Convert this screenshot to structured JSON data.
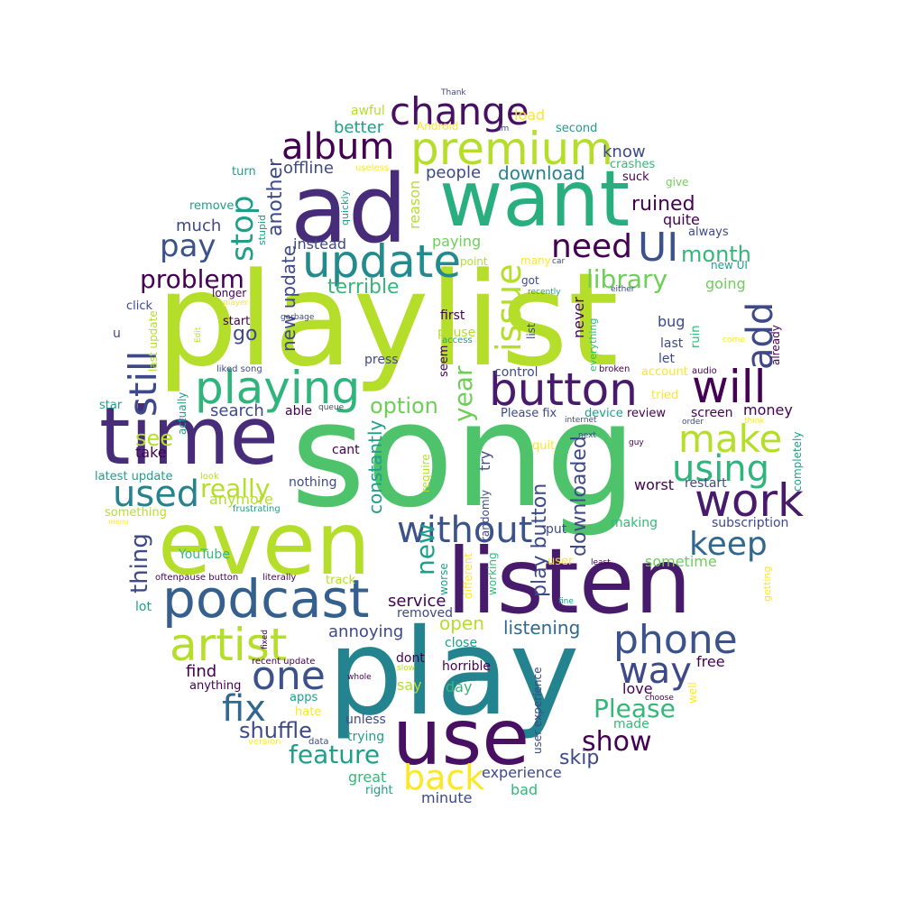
{
  "palette": [
    "#440154",
    "#482878",
    "#3e4989",
    "#31688e",
    "#26828e",
    "#1f9e89",
    "#35b779",
    "#6ece58",
    "#b5de2b",
    "#fde725"
  ],
  "words": [
    {
      "text": "song",
      "color": "#4ec36b"
    },
    {
      "text": "playlist",
      "color": "#b5de2b"
    },
    {
      "text": "play",
      "color": "#23838e"
    },
    {
      "text": "listen",
      "color": "#481a6c"
    },
    {
      "text": "even",
      "color": "#b5de2b"
    },
    {
      "text": "ad",
      "color": "#472c7a"
    },
    {
      "text": "want",
      "color": "#29af7f"
    },
    {
      "text": "time",
      "color": "#472c7a"
    },
    {
      "text": "use",
      "color": "#471063"
    },
    {
      "text": "podcast",
      "color": "#355f8d"
    },
    {
      "text": "premium",
      "color": "#b5de2b"
    },
    {
      "text": "update",
      "color": "#238a8d"
    },
    {
      "text": "button",
      "color": "#481a6c"
    },
    {
      "text": "will",
      "color": "#440154"
    },
    {
      "text": "work",
      "color": "#481a6c"
    },
    {
      "text": "playing",
      "color": "#2fb47c"
    },
    {
      "text": "artist",
      "color": "#b5de2b"
    },
    {
      "text": "phone",
      "color": "#3b528b"
    },
    {
      "text": "change",
      "color": "#471063"
    },
    {
      "text": "album",
      "color": "#440154"
    },
    {
      "text": "make",
      "color": "#b5de2b"
    },
    {
      "text": "one",
      "color": "#3b528b"
    },
    {
      "text": "way",
      "color": "#3e4989"
    },
    {
      "text": "UI",
      "color": "#3b528b"
    },
    {
      "text": "using",
      "color": "#2fb47c"
    },
    {
      "text": "without",
      "color": "#3b528b"
    },
    {
      "text": "keep",
      "color": "#31688e"
    },
    {
      "text": "used",
      "color": "#26828e"
    },
    {
      "text": "fix",
      "color": "#31688e"
    },
    {
      "text": "back",
      "color": "#fde725"
    },
    {
      "text": "need",
      "color": "#440154"
    },
    {
      "text": "pay",
      "color": "#3b528b"
    },
    {
      "text": "add",
      "color": "#3e4989"
    },
    {
      "text": "still",
      "color": "#3e4989"
    },
    {
      "text": "stop",
      "color": "#1f9e89"
    },
    {
      "text": "issue",
      "color": "#b5de2b"
    },
    {
      "text": "Please",
      "color": "#35b779"
    },
    {
      "text": "feature",
      "color": "#1f9e89"
    },
    {
      "text": "problem",
      "color": "#440154"
    },
    {
      "text": "library",
      "color": "#6ece58"
    },
    {
      "text": "show",
      "color": "#440154"
    },
    {
      "text": "really",
      "color": "#b5de2b"
    },
    {
      "text": "month",
      "color": "#35b779"
    },
    {
      "text": "new",
      "color": "#1f9e89"
    },
    {
      "text": "shuffle",
      "color": "#3e4989"
    },
    {
      "text": "option",
      "color": "#6ece58"
    },
    {
      "text": "year",
      "color": "#6ece58"
    },
    {
      "text": "thing",
      "color": "#3e4989"
    },
    {
      "text": "see",
      "color": "#b5de2b"
    },
    {
      "text": "terrible",
      "color": "#35b779"
    },
    {
      "text": "ruined",
      "color": "#440154"
    },
    {
      "text": "another",
      "color": "#3e4989"
    },
    {
      "text": "new update",
      "color": "#3e4989"
    },
    {
      "text": "downloaded",
      "color": "#3e4989"
    },
    {
      "text": "play button",
      "color": "#3e4989"
    },
    {
      "text": "listening",
      "color": "#31688e"
    },
    {
      "text": "constantly",
      "color": "#1f9e89"
    },
    {
      "text": "skip",
      "color": "#3e4989"
    },
    {
      "text": "download",
      "color": "#26828e"
    },
    {
      "text": "offline",
      "color": "#3e4989"
    },
    {
      "text": "people",
      "color": "#3e4989"
    },
    {
      "text": "better",
      "color": "#1f9e89"
    },
    {
      "text": "know",
      "color": "#3e4989"
    },
    {
      "text": "quite",
      "color": "#440154"
    },
    {
      "text": "go",
      "color": "#3e4989"
    },
    {
      "text": "much",
      "color": "#3e4989"
    },
    {
      "text": "open",
      "color": "#b5de2b"
    },
    {
      "text": "experience",
      "color": "#3e4989"
    },
    {
      "text": "search",
      "color": "#3e4989"
    },
    {
      "text": "service",
      "color": "#440154"
    },
    {
      "text": "annoying",
      "color": "#3e4989"
    },
    {
      "text": "find",
      "color": "#440154"
    },
    {
      "text": "free",
      "color": "#440154"
    },
    {
      "text": "money",
      "color": "#440154"
    },
    {
      "text": "instead",
      "color": "#3e4989"
    },
    {
      "text": "paying",
      "color": "#6ece58"
    },
    {
      "text": "reason",
      "color": "#b5de2b"
    },
    {
      "text": "load",
      "color": "#fde725"
    },
    {
      "text": "awful",
      "color": "#b5de2b"
    },
    {
      "text": "going",
      "color": "#6ece58"
    },
    {
      "text": "sometime",
      "color": "#6ece58"
    },
    {
      "text": "bug",
      "color": "#3e4989"
    },
    {
      "text": "worst",
      "color": "#440154"
    },
    {
      "text": "take",
      "color": "#440154"
    },
    {
      "text": "made",
      "color": "#35b779"
    },
    {
      "text": "love",
      "color": "#440154"
    },
    {
      "text": "say",
      "color": "#b5de2b"
    },
    {
      "text": "day",
      "color": "#35b779"
    },
    {
      "text": "great",
      "color": "#35b779"
    },
    {
      "text": "minute",
      "color": "#3e4989"
    },
    {
      "text": "bad",
      "color": "#35b779"
    },
    {
      "text": "trying",
      "color": "#1f9e89"
    },
    {
      "text": "unless",
      "color": "#3e4989"
    },
    {
      "text": "never",
      "color": "#440154"
    },
    {
      "text": "let",
      "color": "#3e4989"
    },
    {
      "text": "last",
      "color": "#3e4989"
    },
    {
      "text": "screen",
      "color": "#440154"
    },
    {
      "text": "restart",
      "color": "#3e4989"
    },
    {
      "text": "subscription",
      "color": "#3e4989"
    },
    {
      "text": "making",
      "color": "#35b779"
    },
    {
      "text": "try",
      "color": "#3e4989"
    },
    {
      "text": "dont",
      "color": "#440154"
    },
    {
      "text": "horrible",
      "color": "#440154"
    },
    {
      "text": "close",
      "color": "#1f9e89"
    },
    {
      "text": "removed",
      "color": "#3e4989"
    },
    {
      "text": "anymore",
      "color": "#b5de2b"
    },
    {
      "text": "nothing",
      "color": "#3e4989"
    },
    {
      "text": "cant",
      "color": "#440154"
    },
    {
      "text": "able",
      "color": "#440154"
    },
    {
      "text": "press",
      "color": "#3e4989"
    },
    {
      "text": "seem",
      "color": "#440154"
    },
    {
      "text": "first",
      "color": "#440154"
    },
    {
      "text": "pause",
      "color": "#b5de2b"
    },
    {
      "text": "control",
      "color": "#3e4989"
    },
    {
      "text": "Please fix",
      "color": "#3e4989"
    },
    {
      "text": "device",
      "color": "#1f9e89"
    },
    {
      "text": "review",
      "color": "#440154"
    },
    {
      "text": "quit",
      "color": "#fde725"
    },
    {
      "text": "put",
      "color": "#3e4989"
    },
    {
      "text": "user",
      "color": "#fde725"
    },
    {
      "text": "worse",
      "color": "#1f9e89"
    },
    {
      "text": "different",
      "color": "#fde725"
    },
    {
      "text": "working",
      "color": "#35b779"
    },
    {
      "text": "randomly",
      "color": "#3e4989"
    },
    {
      "text": "require",
      "color": "#b5de2b"
    },
    {
      "text": "lot",
      "color": "#1f9e89"
    },
    {
      "text": "YouTube",
      "color": "#35b779"
    },
    {
      "text": "oftenpause button",
      "color": "#440154"
    },
    {
      "text": "literally",
      "color": "#440154"
    },
    {
      "text": "track",
      "color": "#b5de2b"
    },
    {
      "text": "something",
      "color": "#b5de2b"
    },
    {
      "text": "latest update",
      "color": "#1f9e89"
    },
    {
      "text": "frustrating",
      "color": "#1f9e89"
    },
    {
      "text": "look",
      "color": "#b5de2b"
    },
    {
      "text": "star",
      "color": "#1f9e89"
    },
    {
      "text": "actually",
      "color": "#1f9e89"
    },
    {
      "text": "queue",
      "color": "#3e4989"
    },
    {
      "text": "liked song",
      "color": "#3e4989"
    },
    {
      "text": "last update",
      "color": "#b5de2b"
    },
    {
      "text": "Edit",
      "color": "#b5de2b"
    },
    {
      "text": "start",
      "color": "#440154"
    },
    {
      "text": "garbage",
      "color": "#3e4989"
    },
    {
      "text": "player",
      "color": "#fde725"
    },
    {
      "text": "longer",
      "color": "#440154"
    },
    {
      "text": "click",
      "color": "#3e4989"
    },
    {
      "text": "u",
      "color": "#3e4989"
    },
    {
      "text": "remove",
      "color": "#1f9e89"
    },
    {
      "text": "turn",
      "color": "#1f9e89"
    },
    {
      "text": "stupid",
      "color": "#1f9e89"
    },
    {
      "text": "quickly",
      "color": "#1f9e89"
    },
    {
      "text": "useless",
      "color": "#fde725"
    },
    {
      "text": "second",
      "color": "#1f9e89"
    },
    {
      "text": "im",
      "color": "#3e4989"
    },
    {
      "text": "Android",
      "color": "#fde725"
    },
    {
      "text": "Thank",
      "color": "#3e4989"
    },
    {
      "text": "crashes",
      "color": "#35b779"
    },
    {
      "text": "suck",
      "color": "#440154"
    },
    {
      "text": "give",
      "color": "#6ece58"
    },
    {
      "text": "always",
      "color": "#3e4989"
    },
    {
      "text": "new UI",
      "color": "#1f9e89"
    },
    {
      "text": "either",
      "color": "#3e4989"
    },
    {
      "text": "point",
      "color": "#b5de2b"
    },
    {
      "text": "many",
      "color": "#fde725"
    },
    {
      "text": "car",
      "color": "#3e4989"
    },
    {
      "text": "got",
      "color": "#3e4989"
    },
    {
      "text": "recently",
      "color": "#1f9e89"
    },
    {
      "text": "list",
      "color": "#3e4989"
    },
    {
      "text": "access",
      "color": "#1f9e89"
    },
    {
      "text": "everything",
      "color": "#35b779"
    },
    {
      "text": "ruin",
      "color": "#35b779"
    },
    {
      "text": "come",
      "color": "#fde725"
    },
    {
      "text": "already",
      "color": "#440154"
    },
    {
      "text": "account",
      "color": "#fde725"
    },
    {
      "text": "audio",
      "color": "#440154"
    },
    {
      "text": "broken",
      "color": "#440154"
    },
    {
      "text": "tried",
      "color": "#fde725"
    },
    {
      "text": "order",
      "color": "#3e4989"
    },
    {
      "text": "think",
      "color": "#fde725"
    },
    {
      "text": "internet",
      "color": "#3e4989"
    },
    {
      "text": "next",
      "color": "#3e4989"
    },
    {
      "text": "guy",
      "color": "#440154"
    },
    {
      "text": "completely",
      "color": "#1f9e89"
    },
    {
      "text": "least",
      "color": "#440154"
    },
    {
      "text": "fine",
      "color": "#1f9e89"
    },
    {
      "text": "getting",
      "color": "#fde725"
    },
    {
      "text": "user experience",
      "color": "#3e4989"
    },
    {
      "text": "whole",
      "color": "#440154"
    },
    {
      "text": "slow",
      "color": "#b5de2b"
    },
    {
      "text": "choose",
      "color": "#440154"
    },
    {
      "text": "well",
      "color": "#fde725"
    },
    {
      "text": "recent update",
      "color": "#440154"
    },
    {
      "text": "fixed",
      "color": "#440154"
    },
    {
      "text": "anything",
      "color": "#440154"
    },
    {
      "text": "apps",
      "color": "#1f9e89"
    },
    {
      "text": "hate",
      "color": "#fde725"
    },
    {
      "text": "version",
      "color": "#fde725"
    },
    {
      "text": "data",
      "color": "#3e4989"
    },
    {
      "text": "right",
      "color": "#1f9e89"
    },
    {
      "text": "menu",
      "color": "#fde725"
    }
  ]
}
